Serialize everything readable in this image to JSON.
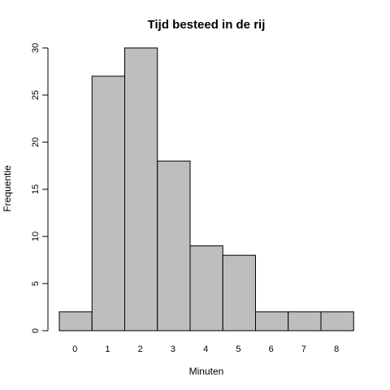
{
  "chart_data": {
    "type": "bar",
    "title": "Tijd besteed in de rij",
    "xlabel": "Minuten",
    "ylabel": "Frequentie",
    "categories": [
      "0",
      "1",
      "2",
      "3",
      "4",
      "5",
      "6",
      "7",
      "8"
    ],
    "values": [
      2,
      27,
      30,
      18,
      9,
      8,
      2,
      2,
      2
    ],
    "ylim": [
      0,
      30
    ],
    "yticks": [
      0,
      5,
      10,
      15,
      20,
      25,
      30
    ],
    "grid": false,
    "bar_color": "#bebebe",
    "border_color": "#000000"
  }
}
